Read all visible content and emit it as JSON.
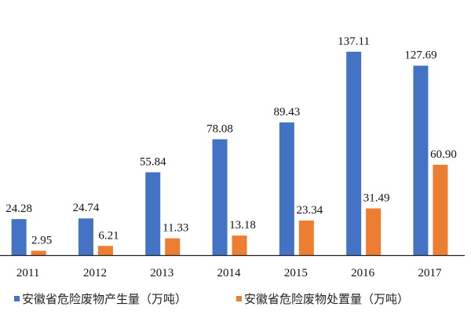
{
  "chart_data": {
    "type": "bar",
    "categories": [
      "2011",
      "2012",
      "2013",
      "2014",
      "2015",
      "2016",
      "2017"
    ],
    "series": [
      {
        "name": "安徽省危险废物产生量（万吨）",
        "color": "#4472C4",
        "values": [
          24.28,
          24.74,
          55.84,
          78.08,
          89.43,
          137.11,
          127.69
        ]
      },
      {
        "name": "安徽省危险废物处置量（万吨）",
        "color": "#ED7D31",
        "values": [
          2.95,
          6.21,
          11.33,
          13.18,
          23.34,
          31.49,
          60.9
        ]
      }
    ],
    "value_labels": [
      [
        "24.28",
        "24.74",
        "55.84",
        "78.08",
        "89.43",
        "137.11",
        "127.69"
      ],
      [
        "2.95",
        "6.21",
        "11.33",
        "13.18",
        "23.34",
        "31.49",
        "60.90"
      ]
    ],
    "title": "",
    "xlabel": "",
    "ylabel": "",
    "ylim": [
      0,
      140
    ],
    "grid": false,
    "legend_placement": "bottom"
  }
}
